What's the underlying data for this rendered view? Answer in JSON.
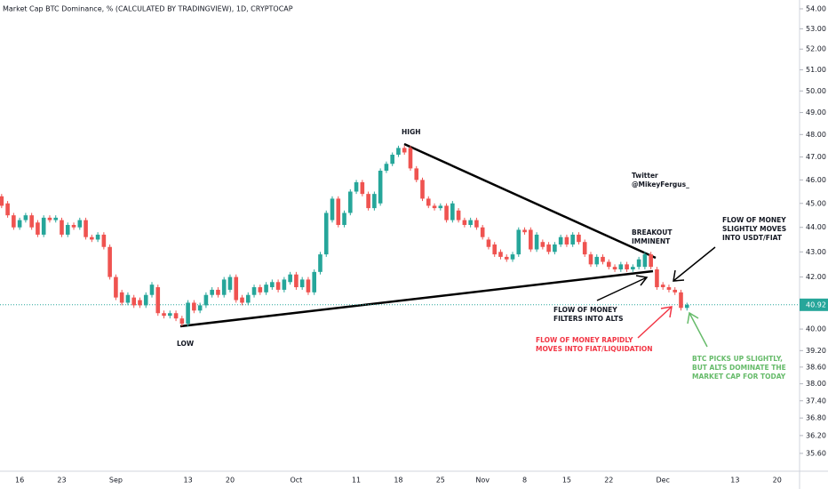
{
  "chart_data": {
    "type": "candlestick",
    "title": "Market Cap BTC Dominance, % (CALCULATED BY TRADINGVIEW), 1D, CRYPTOCAP",
    "up_color": "#26a69a",
    "down_color": "#ef5350",
    "log_scale": true,
    "grid": false,
    "ylim": [
      35.01,
      54.45
    ],
    "yticks": [
      {
        "value": 54,
        "label": "54.00"
      },
      {
        "value": 53,
        "label": "53.00"
      },
      {
        "value": 52,
        "label": "52.00"
      },
      {
        "value": 51,
        "label": "51.00"
      },
      {
        "value": 50,
        "label": "50.00"
      },
      {
        "value": 49,
        "label": "49.00"
      },
      {
        "value": 48,
        "label": "48.00"
      },
      {
        "value": 47,
        "label": "47.00"
      },
      {
        "value": 46,
        "label": "46.00"
      },
      {
        "value": 45,
        "label": "45.00"
      },
      {
        "value": 44,
        "label": "44.00"
      },
      {
        "value": 43,
        "label": "43.00"
      },
      {
        "value": 42,
        "label": "42.00"
      },
      {
        "value": 40,
        "label": "40.00"
      },
      {
        "value": 39.2,
        "label": "39.20"
      },
      {
        "value": 38.6,
        "label": "38.60"
      },
      {
        "value": 38,
        "label": "38.00"
      },
      {
        "value": 37.4,
        "label": "37.40"
      },
      {
        "value": 36.8,
        "label": "36.80"
      },
      {
        "value": 36.2,
        "label": "36.20"
      },
      {
        "value": 35.6,
        "label": "35.60"
      }
    ],
    "last_price": 40.92,
    "categories": [
      null,
      null,
      null,
      "16",
      null,
      null,
      null,
      null,
      null,
      null,
      "23",
      null,
      null,
      null,
      null,
      null,
      null,
      null,
      null,
      "Sep",
      null,
      null,
      null,
      null,
      null,
      null,
      null,
      null,
      null,
      null,
      null,
      "13",
      null,
      null,
      null,
      null,
      null,
      null,
      "20",
      null,
      null,
      null,
      null,
      null,
      null,
      null,
      null,
      null,
      null,
      "Oct",
      null,
      null,
      null,
      null,
      null,
      null,
      null,
      null,
      null,
      "11",
      null,
      null,
      null,
      null,
      null,
      null,
      "18",
      null,
      null,
      null,
      null,
      null,
      null,
      "25",
      null,
      null,
      null,
      null,
      null,
      null,
      "Nov",
      null,
      null,
      null,
      null,
      null,
      null,
      "8",
      null,
      null,
      null,
      null,
      null,
      null,
      "15",
      null,
      null,
      null,
      null,
      null,
      null,
      "22",
      null,
      null,
      null,
      null,
      null,
      null,
      null,
      null,
      "Dec",
      null,
      null,
      null,
      null,
      null,
      null,
      null,
      null,
      null,
      null,
      null,
      "13",
      null,
      null,
      null,
      null,
      null,
      null,
      "20",
      null,
      null,
      null
    ],
    "open": [
      45.3,
      45.0,
      44.5,
      44.0,
      44.3,
      44.5,
      44.2,
      43.7,
      44.4,
      44.3,
      44.3,
      43.7,
      44.1,
      44.0,
      44.3,
      43.6,
      43.5,
      43.7,
      43.2,
      42.0,
      41.4,
      41.0,
      41.2,
      41.1,
      40.9,
      41.3,
      41.6,
      40.6,
      40.5,
      40.6,
      40.4,
      40.2,
      41.0,
      40.7,
      40.9,
      41.3,
      41.5,
      41.3,
      41.5,
      42.0,
      41.2,
      41.0,
      41.3,
      41.6,
      41.4,
      41.6,
      41.8,
      41.5,
      41.8,
      42.1,
      41.6,
      41.9,
      41.4,
      42.2,
      42.9,
      44.3,
      45.2,
      44.1,
      44.6,
      45.5,
      45.9,
      45.4,
      44.8,
      45.0,
      46.4,
      46.7,
      47.1,
      47.4,
      47.4,
      46.5,
      46.0,
      45.2,
      44.9,
      44.8,
      44.9,
      44.3,
      44.7,
      44.3,
      44.1,
      44.3,
      44.0,
      43.5,
      43.3,
      43.0,
      42.8,
      42.7,
      42.9,
      43.9,
      43.9,
      43.1,
      43.4,
      43.3,
      43.0,
      43.3,
      43.6,
      43.3,
      43.7,
      43.4,
      42.9,
      42.5,
      42.8,
      42.6,
      42.4,
      42.3,
      42.5,
      42.3,
      42.4,
      42.4,
      42.9,
      42.3,
      41.7,
      41.6,
      41.5,
      41.4,
      40.8,
      null,
      null,
      null,
      null,
      null,
      null,
      null,
      null,
      null,
      null,
      null,
      null,
      null,
      null,
      null,
      null,
      null,
      null
    ],
    "high": [
      45.4,
      45.1,
      44.6,
      44.4,
      44.6,
      44.6,
      44.3,
      44.5,
      44.5,
      44.5,
      44.4,
      44.2,
      44.2,
      44.4,
      44.4,
      43.7,
      43.8,
      43.8,
      43.3,
      42.1,
      41.5,
      41.4,
      41.3,
      41.2,
      41.4,
      41.8,
      41.7,
      40.7,
      40.7,
      40.7,
      40.5,
      41.1,
      41.1,
      41.0,
      41.4,
      41.6,
      41.6,
      42.0,
      42.1,
      42.1,
      41.3,
      41.4,
      41.7,
      41.7,
      41.8,
      41.9,
      41.9,
      42.0,
      42.2,
      42.2,
      42.0,
      42.0,
      42.3,
      43.0,
      44.7,
      45.3,
      45.3,
      44.7,
      45.6,
      46.0,
      46.0,
      45.5,
      45.5,
      46.5,
      46.8,
      47.2,
      47.5,
      47.5,
      47.5,
      46.6,
      46.1,
      45.3,
      45.0,
      45.0,
      45.0,
      45.1,
      44.8,
      44.4,
      44.4,
      44.4,
      44.1,
      43.6,
      43.4,
      43.1,
      42.9,
      43.0,
      44.0,
      44.0,
      44.0,
      43.8,
      43.5,
      43.4,
      43.4,
      43.7,
      43.7,
      43.8,
      43.8,
      43.5,
      43.0,
      42.9,
      42.9,
      42.7,
      42.5,
      42.6,
      42.6,
      42.5,
      42.8,
      43.0,
      43.0,
      42.4,
      41.8,
      41.7,
      41.6,
      41.5,
      41.0,
      null,
      null,
      null,
      null,
      null,
      null,
      null,
      null,
      null,
      null,
      null,
      null,
      null,
      null,
      null,
      null,
      null,
      null
    ],
    "low": [
      44.8,
      44.4,
      43.9,
      43.9,
      44.2,
      43.9,
      43.6,
      43.6,
      44.2,
      44.2,
      43.6,
      43.6,
      43.9,
      43.9,
      43.5,
      43.4,
      43.4,
      43.1,
      41.9,
      41.1,
      40.9,
      40.9,
      40.8,
      40.8,
      40.8,
      41.2,
      40.5,
      40.4,
      40.4,
      40.3,
      40.1,
      40.1,
      40.6,
      40.6,
      40.8,
      41.2,
      41.2,
      41.2,
      41.4,
      41.0,
      40.9,
      40.9,
      41.2,
      41.3,
      41.3,
      41.5,
      41.4,
      41.4,
      41.7,
      41.5,
      41.5,
      41.3,
      41.3,
      42.1,
      42.8,
      44.2,
      44.0,
      44.0,
      44.5,
      45.4,
      45.3,
      44.7,
      44.7,
      44.9,
      46.3,
      46.6,
      47.0,
      47.1,
      46.4,
      45.9,
      45.1,
      44.8,
      44.7,
      44.7,
      44.2,
      44.2,
      44.2,
      44.0,
      44.0,
      43.9,
      43.5,
      43.1,
      42.8,
      42.7,
      42.6,
      42.6,
      42.8,
      43.7,
      43.0,
      43.0,
      43.1,
      42.9,
      42.9,
      43.2,
      43.2,
      43.2,
      43.3,
      42.8,
      42.4,
      42.4,
      42.5,
      42.3,
      42.2,
      42.2,
      42.2,
      42.2,
      42.3,
      42.3,
      42.3,
      41.5,
      41.5,
      41.4,
      41.3,
      40.7,
      40.7,
      null,
      null,
      null,
      null,
      null,
      null,
      null,
      null,
      null,
      null,
      null,
      null,
      null,
      null,
      null,
      null,
      null,
      null
    ],
    "close": [
      44.9,
      44.5,
      44.0,
      44.3,
      44.5,
      44.0,
      43.7,
      44.4,
      44.3,
      44.4,
      43.7,
      44.1,
      44.0,
      44.3,
      43.6,
      43.5,
      43.7,
      43.2,
      42.0,
      41.2,
      41.0,
      41.3,
      40.9,
      40.9,
      41.3,
      41.7,
      40.6,
      40.5,
      40.6,
      40.4,
      40.2,
      41.0,
      40.7,
      40.9,
      41.3,
      41.5,
      41.3,
      41.9,
      42.0,
      41.1,
      41.0,
      41.3,
      41.6,
      41.4,
      41.7,
      41.8,
      41.5,
      41.9,
      42.1,
      41.6,
      41.9,
      41.4,
      42.2,
      42.9,
      44.6,
      45.2,
      44.1,
      44.6,
      45.5,
      45.9,
      45.4,
      44.8,
      45.4,
      46.4,
      46.7,
      47.1,
      47.4,
      47.2,
      46.5,
      46.0,
      45.2,
      44.9,
      44.8,
      44.9,
      44.3,
      45.0,
      44.3,
      44.1,
      44.3,
      44.0,
      43.6,
      43.2,
      42.9,
      42.8,
      42.7,
      42.9,
      43.9,
      43.8,
      43.1,
      43.7,
      43.2,
      43.0,
      43.3,
      43.6,
      43.3,
      43.7,
      43.4,
      42.9,
      42.5,
      42.8,
      42.6,
      42.4,
      42.3,
      42.5,
      42.3,
      42.4,
      42.7,
      42.9,
      42.4,
      41.6,
      41.6,
      41.5,
      41.4,
      40.8,
      40.92,
      null,
      null,
      null,
      null,
      null,
      null,
      null,
      null,
      null,
      null,
      null,
      null,
      null,
      null,
      null,
      null,
      null,
      null
    ],
    "annotations": [
      {
        "lines": [
          "HIGH"
        ],
        "color": "#131722"
      },
      {
        "lines": [
          "LOW"
        ],
        "color": "#131722"
      },
      {
        "lines": [
          "Twitter",
          "@MikeyFergus_"
        ],
        "color": "#131722"
      },
      {
        "lines": [
          "BREAKOUT",
          "IMMINENT"
        ],
        "color": "#131722"
      },
      {
        "lines": [
          "FLOW OF MONEY",
          "SLIGHTLY MOVES",
          "INTO USDT/FIAT"
        ],
        "color": "#131722"
      },
      {
        "lines": [
          "FLOW OF MONEY",
          "FILTERS INTO ALTS"
        ],
        "color": "#131722"
      },
      {
        "lines": [
          "FLOW OF MONEY RAPIDLY",
          "MOVES INTO FIAT/LIQUIDATION"
        ],
        "color": "#f23645"
      },
      {
        "lines": [
          "BTC PICKS UP SLIGHTLY,",
          "BUT ALTS DOMINATE THE",
          "MARKET CAP FOR TODAY"
        ],
        "color": "#66bb6a"
      }
    ]
  }
}
